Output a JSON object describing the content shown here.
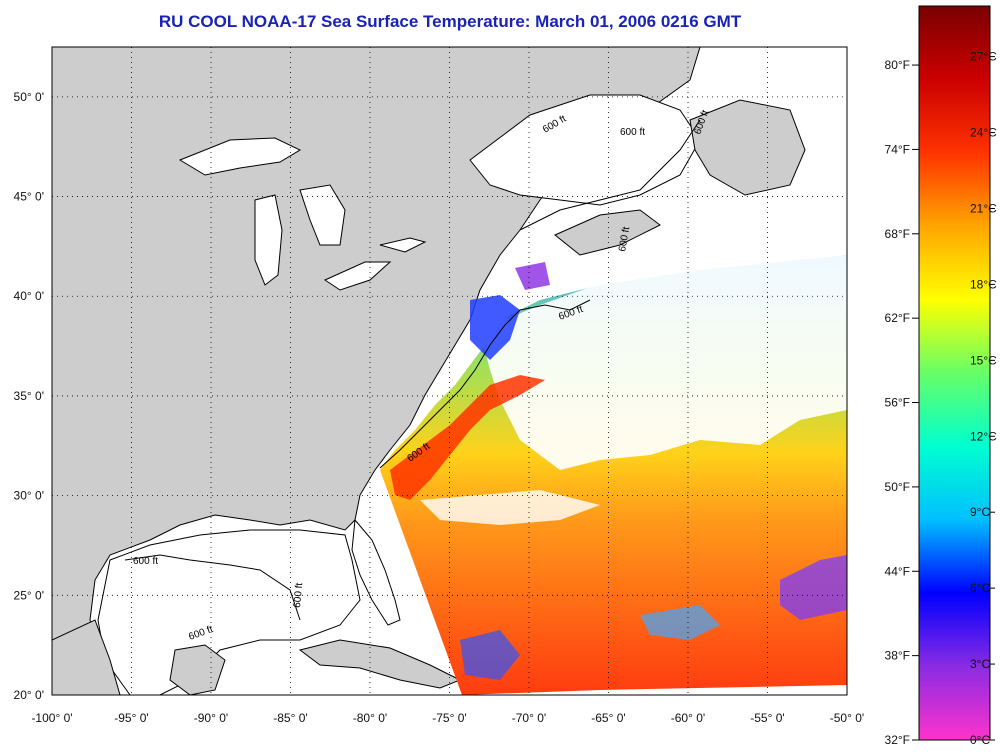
{
  "title": "RU COOL  NOAA-17  Sea Surface Temperature:  March 01, 2006 0216 GMT",
  "map": {
    "lon_range": [
      -100,
      -50
    ],
    "lat_range": [
      20,
      52.5
    ],
    "lon_ticks": [
      "-100° 0'",
      "-95° 0'",
      "-90° 0'",
      "-85° 0'",
      "-80° 0'",
      "-75° 0'",
      "-70° 0'",
      "-65° 0'",
      "-60° 0'",
      "-55° 0'",
      "-50° 0'"
    ],
    "lat_ticks": [
      "20° 0'",
      "25° 0'",
      "30° 0'",
      "35° 0'",
      "40° 0'",
      "45° 0'",
      "50° 0'"
    ],
    "grid": "dotted",
    "isobath_labels": [
      "600 ft",
      "600 ft",
      "600 ft",
      "600 ft",
      "600 ft",
      "600 ft",
      "600 ft",
      "600 ft",
      "600 ft"
    ]
  },
  "colorbar": {
    "fahrenheit_labels": [
      "80°F",
      "74°F",
      "68°F",
      "62°F",
      "56°F",
      "50°F",
      "44°F",
      "38°F",
      "32°F"
    ],
    "celsius_labels": [
      "27°C",
      "24°C",
      "21°C",
      "18°C",
      "15°C",
      "12°C",
      "9°C",
      "6°C",
      "3°C",
      "0°C"
    ],
    "colors": [
      "#ff33cc",
      "#8a2be2",
      "#0000ff",
      "#00bfff",
      "#00ffd0",
      "#66ff66",
      "#ffff00",
      "#ffa500",
      "#ff3300",
      "#cc0000",
      "#7a0000"
    ]
  },
  "colors": {
    "land": "#cdcdcd",
    "ocean_clouds": "#ffffff",
    "title": "#1a22b8"
  }
}
